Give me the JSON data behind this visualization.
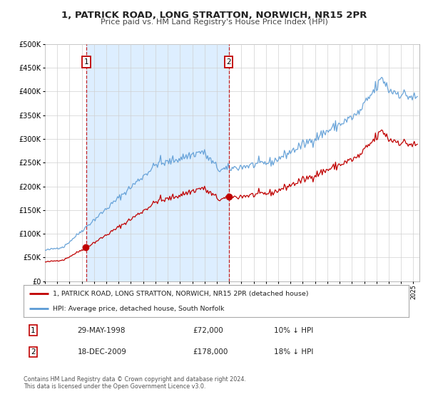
{
  "title": "1, PATRICK ROAD, LONG STRATTON, NORWICH, NR15 2PR",
  "subtitle": "Price paid vs. HM Land Registry's House Price Index (HPI)",
  "legend_line1": "1, PATRICK ROAD, LONG STRATTON, NORWICH, NR15 2PR (detached house)",
  "legend_line2": "HPI: Average price, detached house, South Norfolk",
  "annotation1_date": "29-MAY-1998",
  "annotation1_price": 72000,
  "annotation1_hpi": "10% ↓ HPI",
  "annotation2_date": "18-DEC-2009",
  "annotation2_price": 178000,
  "annotation2_hpi": "18% ↓ HPI",
  "footer1": "Contains HM Land Registry data © Crown copyright and database right 2024.",
  "footer2": "This data is licensed under the Open Government Licence v3.0.",
  "hpi_color": "#5b9bd5",
  "price_color": "#c00000",
  "background_color": "#ffffff",
  "shade_color": "#ddeeff",
  "grid_color": "#d0d0d0",
  "ylim": [
    0,
    500000
  ],
  "yticks": [
    0,
    50000,
    100000,
    150000,
    200000,
    250000,
    300000,
    350000,
    400000,
    450000,
    500000
  ],
  "marker1_t": 1998.37,
  "marker2_t": 2009.96,
  "marker1_price": 72000,
  "marker2_price": 178000,
  "xmin": 1995.0,
  "xmax": 2025.5
}
